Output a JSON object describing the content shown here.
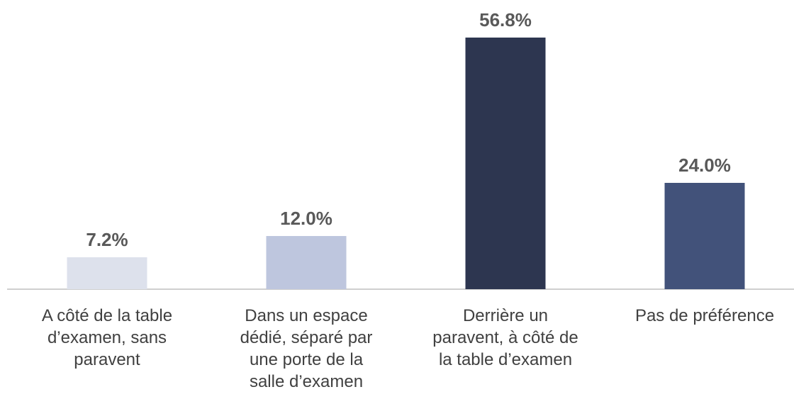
{
  "chart_data": {
    "type": "bar",
    "categories": [
      "A côté de la table\nd’examen, sans\nparavent",
      "Dans un espace\ndédié, séparé par\nune porte de la\nsalle d’examen",
      "Derrière un\nparavent, à côté de\nla table d’examen",
      "Pas de préférence"
    ],
    "values": [
      7.2,
      12.0,
      56.8,
      24.0
    ],
    "value_labels": [
      "7.2%",
      "12.0%",
      "56.8%",
      "24.0%"
    ],
    "colors": [
      "#dde1ec",
      "#bec6de",
      "#2d3650",
      "#42527a"
    ]
  }
}
